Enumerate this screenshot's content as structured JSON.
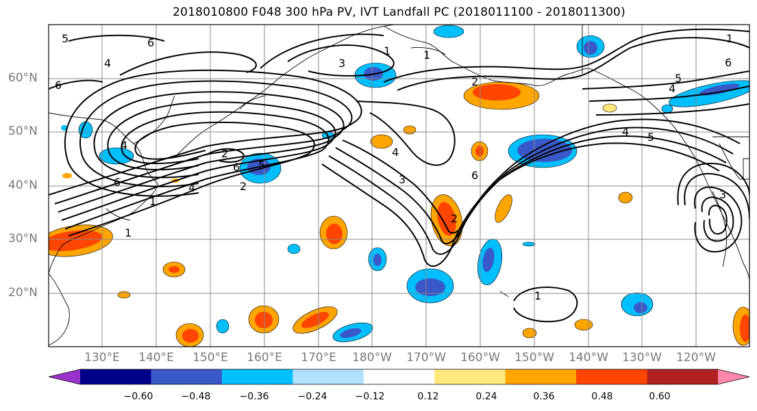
{
  "title": "2018010800 F048 300 hPa PV, IVT Landfall PC (2018011100 - 2018011300)",
  "latitude_labels": [
    "60°N",
    "50°N",
    "40°N",
    "30°N",
    "20°N"
  ],
  "longitude_labels": [
    "130°E",
    "140°E",
    "150°E",
    "160°E",
    "170°E",
    "180°W",
    "170°W",
    "160°W",
    "150°W",
    "140°W",
    "130°W",
    "120°W"
  ],
  "contour_labels": [
    "5",
    "6",
    "4",
    "2",
    "1",
    "3",
    "1",
    "4",
    "6",
    "2",
    "1",
    "1",
    "2",
    "6",
    "5",
    "4",
    "6",
    "2",
    "4",
    "1",
    "1",
    "3",
    "6",
    "5",
    "4",
    "5",
    "4",
    "6",
    "3"
  ],
  "colorbar": {
    "ticks": [
      "−0.60",
      "−0.48",
      "−0.36",
      "−0.24",
      "−0.12",
      "0.12",
      "0.24",
      "0.36",
      "0.48",
      "0.60"
    ],
    "colors": [
      "#9932cc",
      "#00008b",
      "#3a59c8",
      "#00bfff",
      "#b0e2ff",
      "#ffffff",
      "#ffe87c",
      "#ffa500",
      "#ff4500",
      "#b22222",
      "#ff88aa"
    ]
  }
}
